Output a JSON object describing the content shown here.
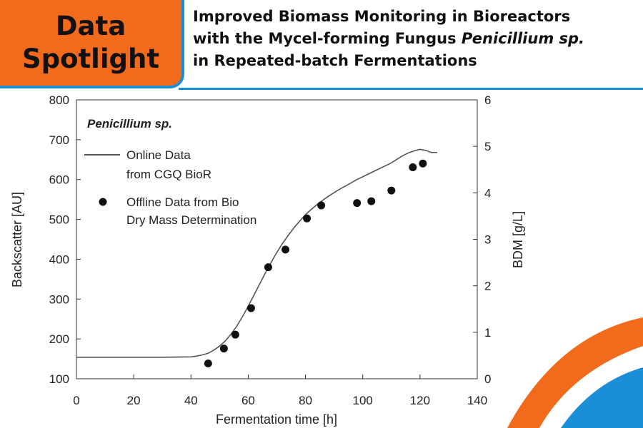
{
  "badge": {
    "line1": "Data",
    "line2": "Spotlight"
  },
  "headline": {
    "line1": "Improved Biomass Monitoring in Bioreactors",
    "line2_a": "with the Mycel-forming Fungus ",
    "line2_b": "Penicillium sp.",
    "line3": "in Repeated-batch Fermentations"
  },
  "colors": {
    "orange": "#f26a1b",
    "blue": "#1b8ed8"
  },
  "chart_data": {
    "type": "line",
    "title": "Penicillium sp.",
    "xlabel": "Fermentation time [h]",
    "ylabel_left": "Backscatter [AU]",
    "ylabel_right": "BDM [g/L]",
    "xlim": [
      0,
      140
    ],
    "ylim_left": [
      100,
      800
    ],
    "ylim_right": [
      0,
      6
    ],
    "x_ticks": [
      0,
      20,
      40,
      60,
      80,
      100,
      120,
      140
    ],
    "y_left_ticks": [
      100,
      200,
      300,
      400,
      500,
      600,
      700,
      800
    ],
    "y_right_ticks": [
      0,
      1,
      2,
      3,
      4,
      5,
      6
    ],
    "grid": false,
    "legend_position": "top-left",
    "series": [
      {
        "name": "Online Data from CGQ BioR",
        "legend_line1": "Online Data",
        "legend_line2": "from CGQ BioR",
        "kind": "line",
        "axis": "left",
        "x": [
          0,
          10,
          20,
          30,
          40,
          42,
          44,
          46,
          48,
          50,
          52,
          54,
          56,
          58,
          60,
          62,
          64,
          66,
          68,
          70,
          72,
          74,
          76,
          78,
          80,
          82,
          84,
          86,
          88,
          90,
          92,
          94,
          96,
          98,
          100,
          102,
          104,
          106,
          108,
          110,
          112,
          114,
          116,
          118,
          120,
          122,
          124,
          126
        ],
        "y": [
          154,
          154,
          154,
          154,
          155,
          157,
          160,
          164,
          172,
          182,
          195,
          212,
          232,
          256,
          282,
          310,
          338,
          366,
          392,
          417,
          440,
          460,
          479,
          496,
          512,
          525,
          537,
          548,
          558,
          567,
          576,
          584,
          592,
          600,
          607,
          614,
          621,
          628,
          635,
          642,
          651,
          660,
          667,
          672,
          676,
          673,
          668,
          668
        ]
      },
      {
        "name": "Offline Data from Bio Dry Mass Determination",
        "legend_line1": "Offline Data from Bio",
        "legend_line2": "Dry Mass Determination",
        "kind": "scatter",
        "axis": "right",
        "x": [
          46,
          51.5,
          55.5,
          61,
          67,
          73,
          80.5,
          85.5,
          98,
          103,
          110,
          117.5,
          121
        ],
        "y": [
          0.33,
          0.65,
          0.95,
          1.52,
          2.4,
          2.78,
          3.45,
          3.73,
          3.78,
          3.82,
          4.05,
          4.55,
          4.63
        ]
      }
    ]
  }
}
